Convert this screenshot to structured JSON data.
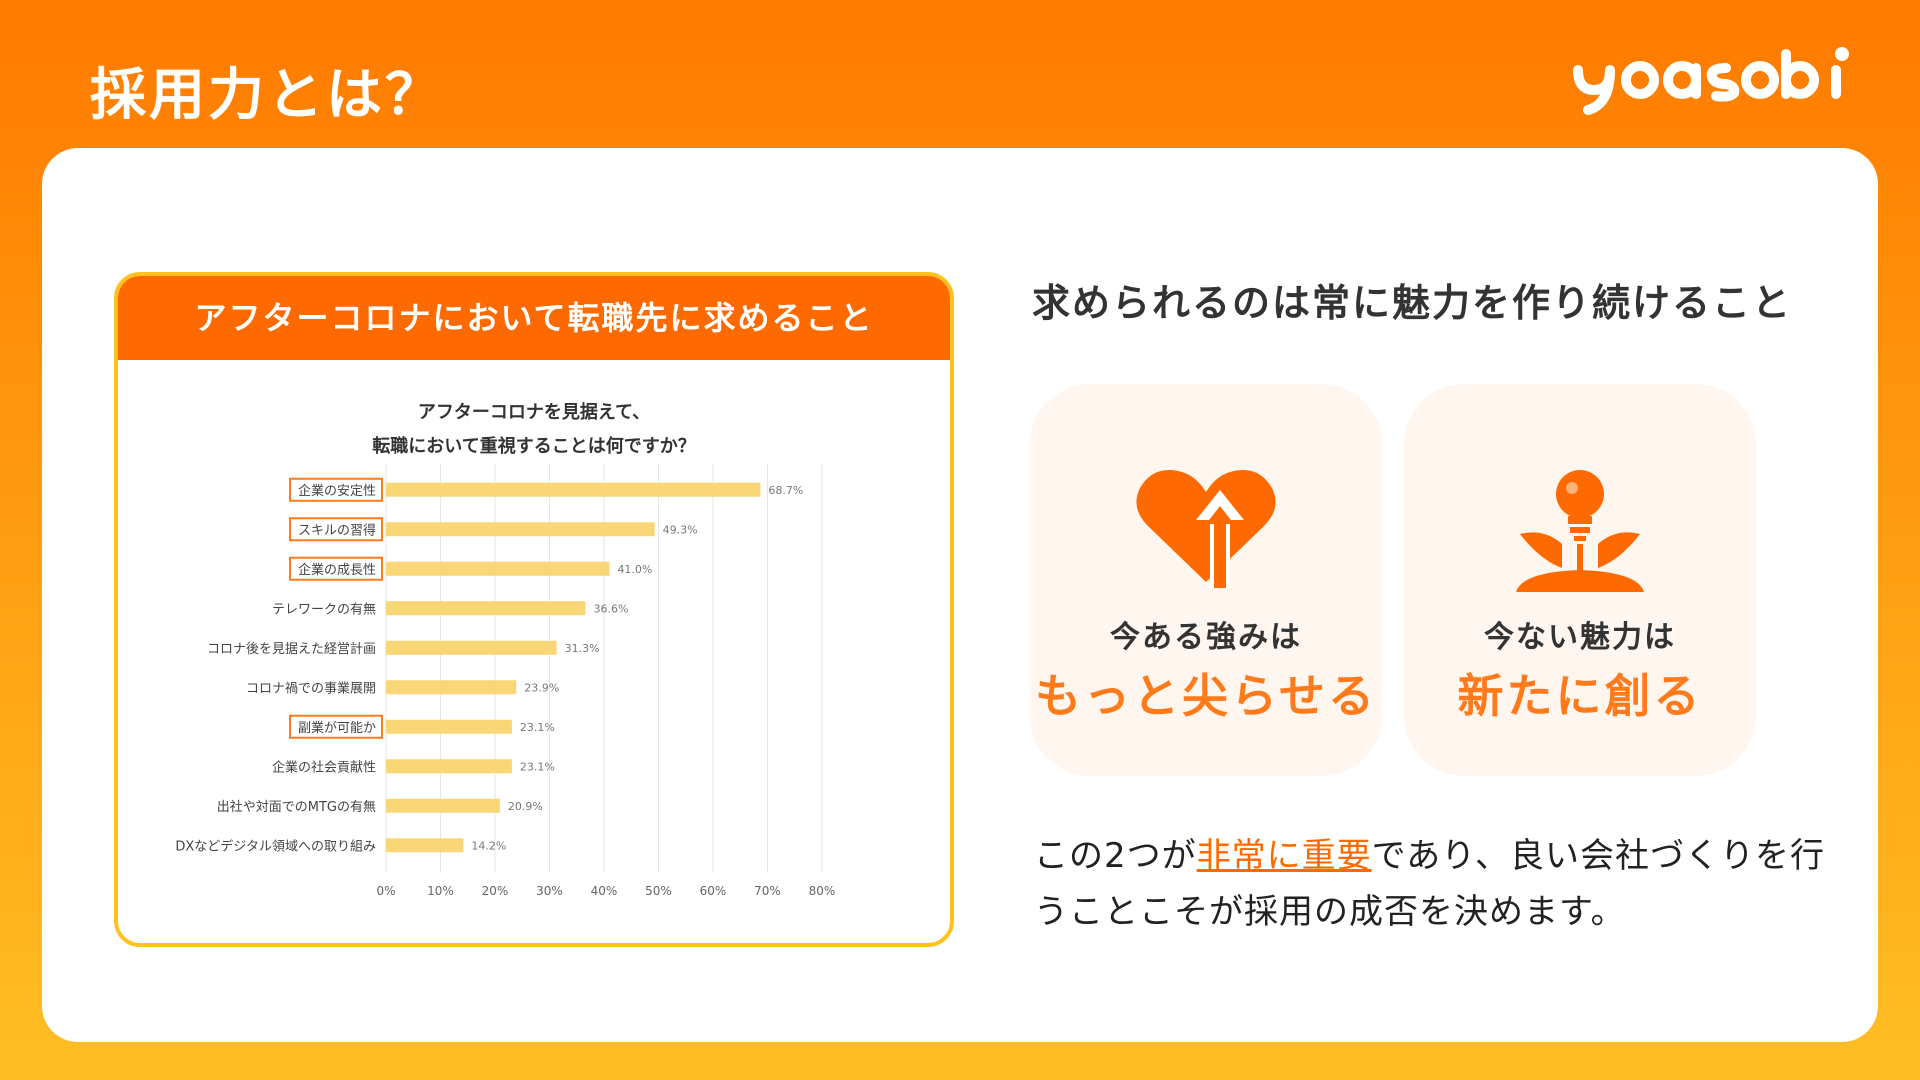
{
  "page": {
    "title": "採用力とは？",
    "logo_text": "yoasobi"
  },
  "chart_panel": {
    "header": "アフターコロナにおいて転職先に求めること"
  },
  "chart_data": {
    "type": "bar",
    "orientation": "horizontal",
    "title_lines": [
      "アフターコロナを見据えて、",
      "転職において重視することは何ですか？"
    ],
    "categories": [
      "企業の安定性",
      "スキルの習得",
      "企業の成長性",
      "テレワークの有無",
      "コロナ後を見据えた経営計画",
      "コロナ禍での事業展開",
      "副業が可能か",
      "企業の社会貢献性",
      "出社や対面でのMTGの有無",
      "DXなどデジタル領域への取り組み"
    ],
    "values": [
      68.7,
      49.3,
      41.0,
      36.6,
      31.3,
      23.9,
      23.1,
      23.1,
      20.9,
      14.2
    ],
    "value_labels": [
      "68.7%",
      "49.3%",
      "41.0%",
      "36.6%",
      "31.3%",
      "23.9%",
      "23.1%",
      "23.1%",
      "20.9%",
      "14.2%"
    ],
    "highlighted": [
      true,
      true,
      true,
      false,
      false,
      false,
      true,
      false,
      false,
      false
    ],
    "xticks": [
      "0%",
      "10%",
      "20%",
      "30%",
      "40%",
      "50%",
      "60%",
      "70%",
      "80%"
    ],
    "xlim": [
      0,
      80
    ],
    "grid": true,
    "colors": {
      "bar": "#f9d776",
      "highlight_border": "#ff7a1a",
      "grid": "#e6e6e6"
    }
  },
  "right": {
    "headline": "求められるのは常に魅力を作り続けること",
    "cards": [
      {
        "line1": "今ある強みは",
        "line2": "もっと尖らせる",
        "icon": "heart-arrow-icon"
      },
      {
        "line1": "今ない魅力は",
        "line2": "新たに創る",
        "icon": "lightbulb-sprout-icon"
      }
    ],
    "conclusion": {
      "pre": "この2つが",
      "highlight": "非常に重要",
      "post": "であり、良い会社づくりを行うことこそが採用の成否を決めます。"
    }
  },
  "colors": {
    "orange": "#ff6a00",
    "accent": "#ff7a1a",
    "yellow": "#ffc21f",
    "card_bg": "#fff6ef"
  }
}
